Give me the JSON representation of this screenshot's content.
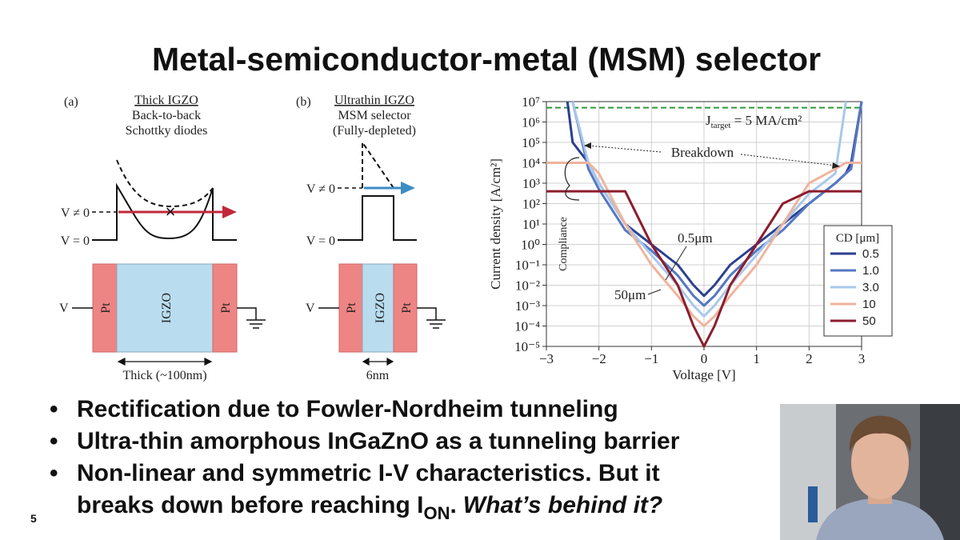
{
  "slide": {
    "title": "Metal-semiconductor-metal (MSM) selector",
    "page_number": "5",
    "bullets": [
      "Rectification due to Fowler-Nordheim tunneling",
      "Ultra-thin amorphous InGaZnO as a tunneling barrier",
      {
        "line1": "Non-linear and symmetric I-V characteristics. But it",
        "line2": "breaks down before reaching I",
        "subscript": "ON",
        "tail": ".",
        "italic": "What’s behind it?"
      }
    ]
  },
  "panel_a": {
    "label": "(a)",
    "heading": "Thick IGZO",
    "lines": [
      "Back-to-back",
      "Schottky diodes"
    ],
    "v_biased": "V ≠ 0",
    "v_zero": "V = 0",
    "v_terminal": "V",
    "layers": [
      "Pt",
      "IGZO",
      "Pt"
    ],
    "thickness": "Thick (~100nm)"
  },
  "panel_b": {
    "label": "(b)",
    "heading": "Ultrathin IGZO",
    "lines": [
      "MSM selector",
      "(Fully-depleted)"
    ],
    "v_biased": "V ≠ 0",
    "v_zero": "V = 0",
    "v_terminal": "V",
    "layers": [
      "Pt",
      "IGZO",
      "Pt"
    ],
    "thickness": "6nm"
  },
  "chart_data": {
    "type": "line",
    "xlabel": "Voltage [V]",
    "ylabel": "Current density [A/cm²]",
    "log_y": true,
    "grid": true,
    "legend_title": "CD [μm]",
    "legend": "right",
    "target": 5000000,
    "target_color": "#2e9a3a",
    "annotations": {
      "target": "J",
      "target_sub": "target",
      "target_tail": " = 5 MA/cm²",
      "breakdown": "Breakdown",
      "compliance": "Compliance",
      "small": "0.5μm",
      "large": "50μm"
    },
    "xlim": [
      -3,
      3
    ],
    "ylim": [
      1e-05,
      10000000
    ],
    "xticks": [
      {
        "value": -3,
        "label": "−3"
      },
      {
        "value": -2,
        "label": "−2"
      },
      {
        "value": -1,
        "label": "−1"
      },
      0,
      1,
      2,
      3
    ],
    "yticks": [
      {
        "value": 1e-05,
        "label": "10⁻⁵"
      },
      {
        "value": 0.0001,
        "label": "10⁻⁴"
      },
      {
        "value": 0.001,
        "label": "10⁻³"
      },
      {
        "value": 0.01,
        "label": "10⁻²"
      },
      {
        "value": 0.1,
        "label": "10⁻¹"
      },
      {
        "value": 1,
        "label": "10⁰"
      },
      {
        "value": 10,
        "label": "10¹"
      },
      {
        "value": 100,
        "label": "10²"
      },
      {
        "value": 1000,
        "label": "10³"
      },
      {
        "value": 10000,
        "label": "10⁴"
      },
      {
        "value": 100000,
        "label": "10⁵"
      },
      {
        "value": 1000000,
        "label": "10⁶"
      },
      {
        "value": 10000000,
        "label": "10⁷"
      }
    ],
    "x": [
      -3,
      -2.6,
      -2.5,
      -2.2,
      -2,
      -1.5,
      -1,
      -0.5,
      -0.2,
      0,
      0.2,
      0.5,
      1,
      1.5,
      2,
      2.5,
      2.7,
      2.8,
      3
    ],
    "series": [
      {
        "name": "0.5",
        "color": "#2b3f8f",
        "values": [
          null,
          10000000,
          100000,
          10000,
          1000,
          10,
          1,
          0.1,
          0.01,
          0.003,
          0.01,
          0.1,
          1,
          10,
          100,
          1000,
          3000,
          10000,
          10000000
        ]
      },
      {
        "name": "1.0",
        "color": "#5577c4",
        "values": [
          null,
          null,
          10000000,
          5000,
          500,
          5,
          0.5,
          0.03,
          0.003,
          0.001,
          0.003,
          0.03,
          0.5,
          5,
          100,
          1000,
          3000,
          5000,
          10000000
        ]
      },
      {
        "name": "3.0",
        "color": "#a9c8ea",
        "values": [
          null,
          null,
          10000000,
          10000,
          1000,
          10,
          0.3,
          0.01,
          0.001,
          0.0003,
          0.001,
          0.01,
          0.3,
          10,
          300,
          3000,
          10000000,
          null,
          null
        ]
      },
      {
        "name": "10",
        "color": "#efb49c",
        "values": [
          10000,
          10000,
          10000,
          10000,
          3000,
          10,
          0.1,
          0.003,
          0.0003,
          0.0001,
          0.0003,
          0.003,
          0.1,
          10,
          1000,
          5000,
          10000,
          10000,
          10000
        ]
      },
      {
        "name": "50",
        "color": "#8c1c2c",
        "values": [
          400,
          400,
          400,
          400,
          400,
          400,
          1,
          0.01,
          0.0001,
          1e-05,
          0.0001,
          0.01,
          1,
          100,
          400,
          400,
          400,
          400,
          400
        ]
      }
    ]
  }
}
